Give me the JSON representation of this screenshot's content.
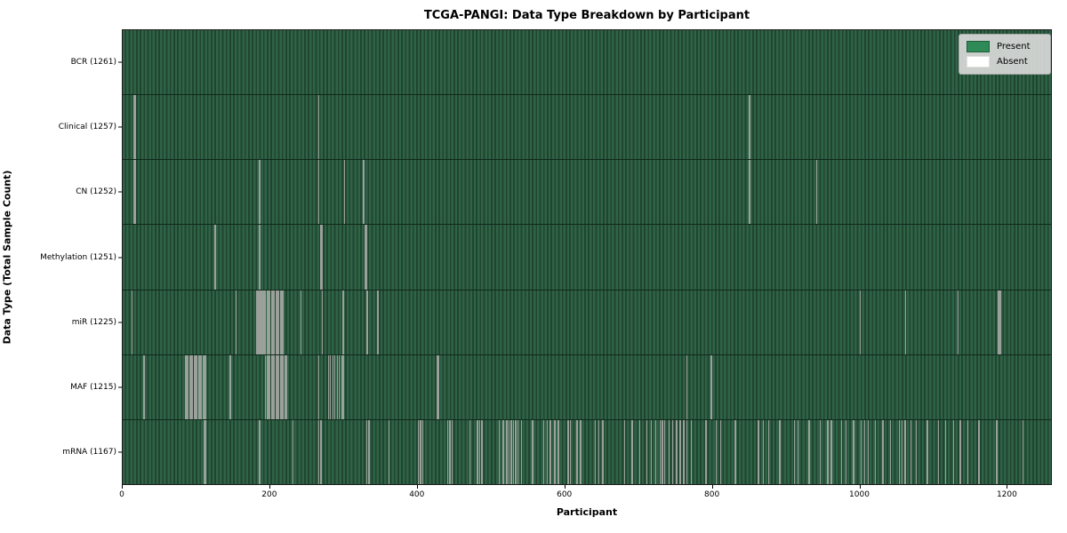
{
  "title": "TCGA-PANGI: Data Type Breakdown by Participant",
  "colors": {
    "present": "#2e8b57",
    "present_dark_edge": "#20452f",
    "absent_stripe": "#9aa09a",
    "legend_bg": "#d9d9d9"
  },
  "legend": {
    "position": "upper right",
    "items": [
      {
        "label": "Present",
        "color": "#2e8b57"
      },
      {
        "label": "Absent",
        "color": "#ffffff"
      }
    ]
  },
  "chart_data": {
    "type": "heatmap",
    "title": "TCGA-PANGI: Data Type Breakdown by Participant",
    "xlabel": "Participant",
    "ylabel": "Data Type (Total Sample Count)",
    "x_range": [
      0,
      1261
    ],
    "x_ticks": [
      0,
      200,
      400,
      600,
      800,
      1000,
      1200
    ],
    "n_participants": 1261,
    "grid": false,
    "rows": [
      {
        "label": "BCR (1261)",
        "data_type": "BCR",
        "present_count": 1261,
        "absent_count": 0,
        "absent_participants": []
      },
      {
        "label": "Clinical (1257)",
        "data_type": "Clinical",
        "present_count": 1257,
        "absent_count": 4,
        "absent_participants": [
          15,
          16,
          265,
          849
        ]
      },
      {
        "label": "CN (1252)",
        "data_type": "CN",
        "present_count": 1252,
        "absent_count": 9,
        "absent_participants": [
          15,
          16,
          185,
          265,
          300,
          325,
          326,
          849,
          940
        ]
      },
      {
        "label": "Methylation (1251)",
        "data_type": "Methylation",
        "present_count": 1251,
        "absent_count": 10,
        "absent_participants": [
          124,
          125,
          184,
          185,
          268,
          269,
          270,
          328,
          329,
          330
        ]
      },
      {
        "label": "miR (1225)",
        "data_type": "miR",
        "present_count": 1225,
        "absent_count": 36,
        "absent_participants": [
          12,
          153,
          181,
          183,
          185,
          187,
          189,
          191,
          193,
          195,
          197,
          199,
          201,
          203,
          205,
          207,
          209,
          211,
          213,
          214,
          215,
          216,
          241,
          270,
          298,
          330,
          331,
          345,
          346,
          999,
          1061,
          1132,
          1186,
          1187,
          1188,
          1189
        ]
      },
      {
        "label": "MAF (1215)",
        "data_type": "MAF",
        "present_count": 1215,
        "absent_count": 46,
        "absent_participants": [
          28,
          84,
          86,
          88,
          90,
          92,
          94,
          96,
          98,
          100,
          102,
          104,
          106,
          108,
          110,
          112,
          145,
          193,
          195,
          197,
          199,
          201,
          203,
          205,
          207,
          209,
          211,
          213,
          215,
          217,
          219,
          221,
          265,
          278,
          281,
          284,
          287,
          290,
          293,
          296,
          298,
          426,
          427,
          764,
          797,
          798
        ]
      },
      {
        "label": "mRNA (1167)",
        "data_type": "mRNA",
        "present_count": 1167,
        "absent_count": 94,
        "absent_participants": [
          110,
          112,
          185,
          230,
          265,
          268,
          330,
          333,
          360,
          400,
          403,
          406,
          440,
          443,
          446,
          470,
          480,
          483,
          486,
          510,
          515,
          520,
          523,
          526,
          529,
          532,
          535,
          540,
          555,
          570,
          575,
          579,
          585,
          590,
          603,
          606,
          615,
          620,
          640,
          645,
          650,
          680,
          690,
          700,
          710,
          716,
          722,
          728,
          731,
          734,
          740,
          745,
          750,
          755,
          760,
          764,
          770,
          790,
          804,
          810,
          830,
          861,
          868,
          875,
          890,
          910,
          915,
          930,
          945,
          955,
          960,
          974,
          980,
          990,
          1000,
          1005,
          1010,
          1020,
          1030,
          1040,
          1052,
          1056,
          1060,
          1068,
          1075,
          1090,
          1105,
          1115,
          1126,
          1135,
          1145,
          1160,
          1184,
          1220
        ]
      }
    ]
  }
}
